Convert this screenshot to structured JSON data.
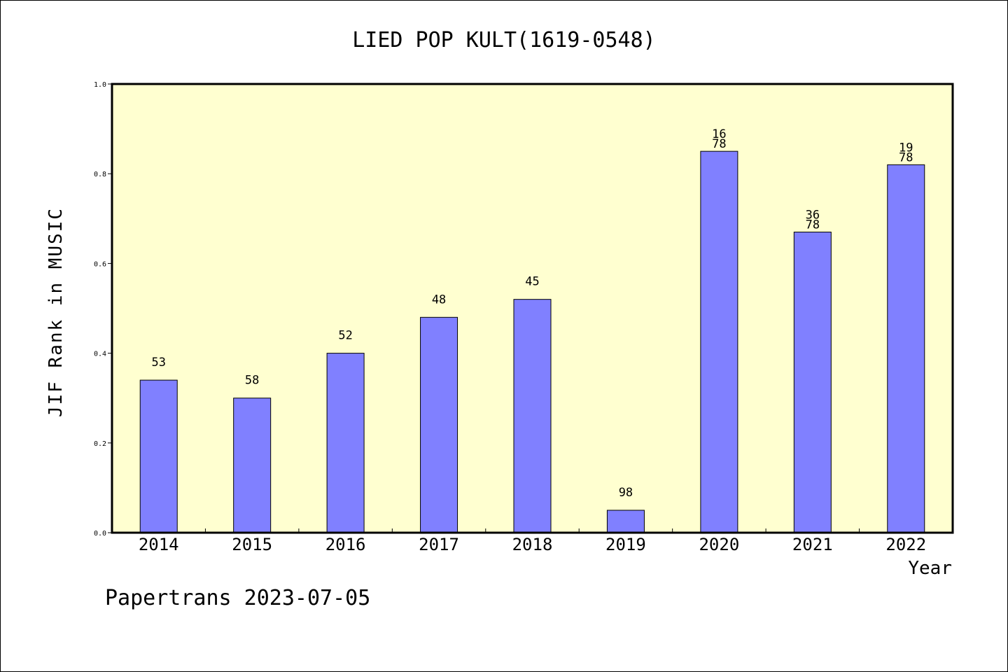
{
  "chart_data": {
    "type": "bar",
    "title": "LIED POP KULT(1619-0548)",
    "xlabel": "Year",
    "ylabel": "JIF Rank in MUSIC",
    "footer": "Papertrans 2023-07-05",
    "categories": [
      "2014",
      "2015",
      "2016",
      "2017",
      "2018",
      "2019",
      "2020",
      "2021",
      "2022"
    ],
    "values": [
      0.34,
      0.3,
      0.4,
      0.48,
      0.52,
      0.05,
      0.85,
      0.67,
      0.82
    ],
    "bar_labels": [
      [
        "53"
      ],
      [
        "58"
      ],
      [
        "52"
      ],
      [
        "48"
      ],
      [
        "45"
      ],
      [
        "98"
      ],
      [
        "16",
        "78"
      ],
      [
        "36",
        "78"
      ],
      [
        "19",
        "78"
      ]
    ],
    "ylim": [
      0,
      1.0
    ],
    "yticks": [
      "0.0",
      "0.2",
      "0.4",
      "0.6",
      "0.8",
      "1.0"
    ],
    "grid": false,
    "colors": {
      "plot_background": "#ffffd0",
      "bar_fill": "#8080ff",
      "bar_stroke": "#000000"
    }
  }
}
